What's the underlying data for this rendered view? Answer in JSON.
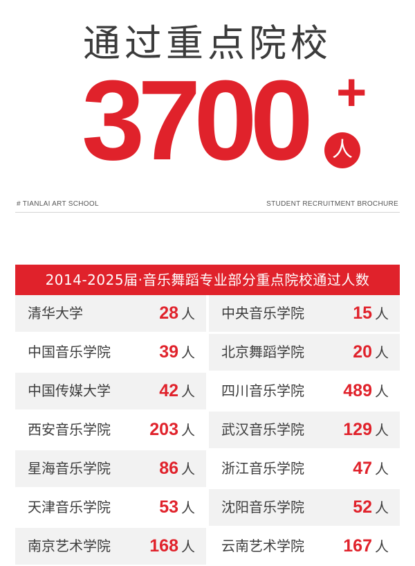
{
  "headline": {
    "title": "通过重点院校",
    "number": "3700",
    "plus": "+",
    "unit": "人"
  },
  "tags": {
    "school": "# TIANLAI ART SCHOOL",
    "brochure": "STUDENT RECRUITMENT BROCHURE"
  },
  "table": {
    "header": "2014-2025届·音乐舞蹈专业部分重点院校通过人数",
    "unit": "人",
    "rows": [
      [
        {
          "school": "清华大学",
          "count": "28"
        },
        {
          "school": "中央音乐学院",
          "count": "15"
        }
      ],
      [
        {
          "school": "中国音乐学院",
          "count": "39"
        },
        {
          "school": "北京舞蹈学院",
          "count": "20"
        }
      ],
      [
        {
          "school": "中国传媒大学",
          "count": "42"
        },
        {
          "school": "四川音乐学院",
          "count": "489"
        }
      ],
      [
        {
          "school": "西安音乐学院",
          "count": "203"
        },
        {
          "school": "武汉音乐学院",
          "count": "129"
        }
      ],
      [
        {
          "school": "星海音乐学院",
          "count": "86"
        },
        {
          "school": "浙江音乐学院",
          "count": "47"
        }
      ],
      [
        {
          "school": "天津音乐学院",
          "count": "53"
        },
        {
          "school": "沈阳音乐学院",
          "count": "52"
        }
      ],
      [
        {
          "school": "南京艺术学院",
          "count": "168"
        },
        {
          "school": "云南艺术学院",
          "count": "167"
        }
      ]
    ]
  },
  "colors": {
    "accent": "#e0222b",
    "text": "#3d3d3d",
    "row_shade": "#f2f2f2"
  }
}
